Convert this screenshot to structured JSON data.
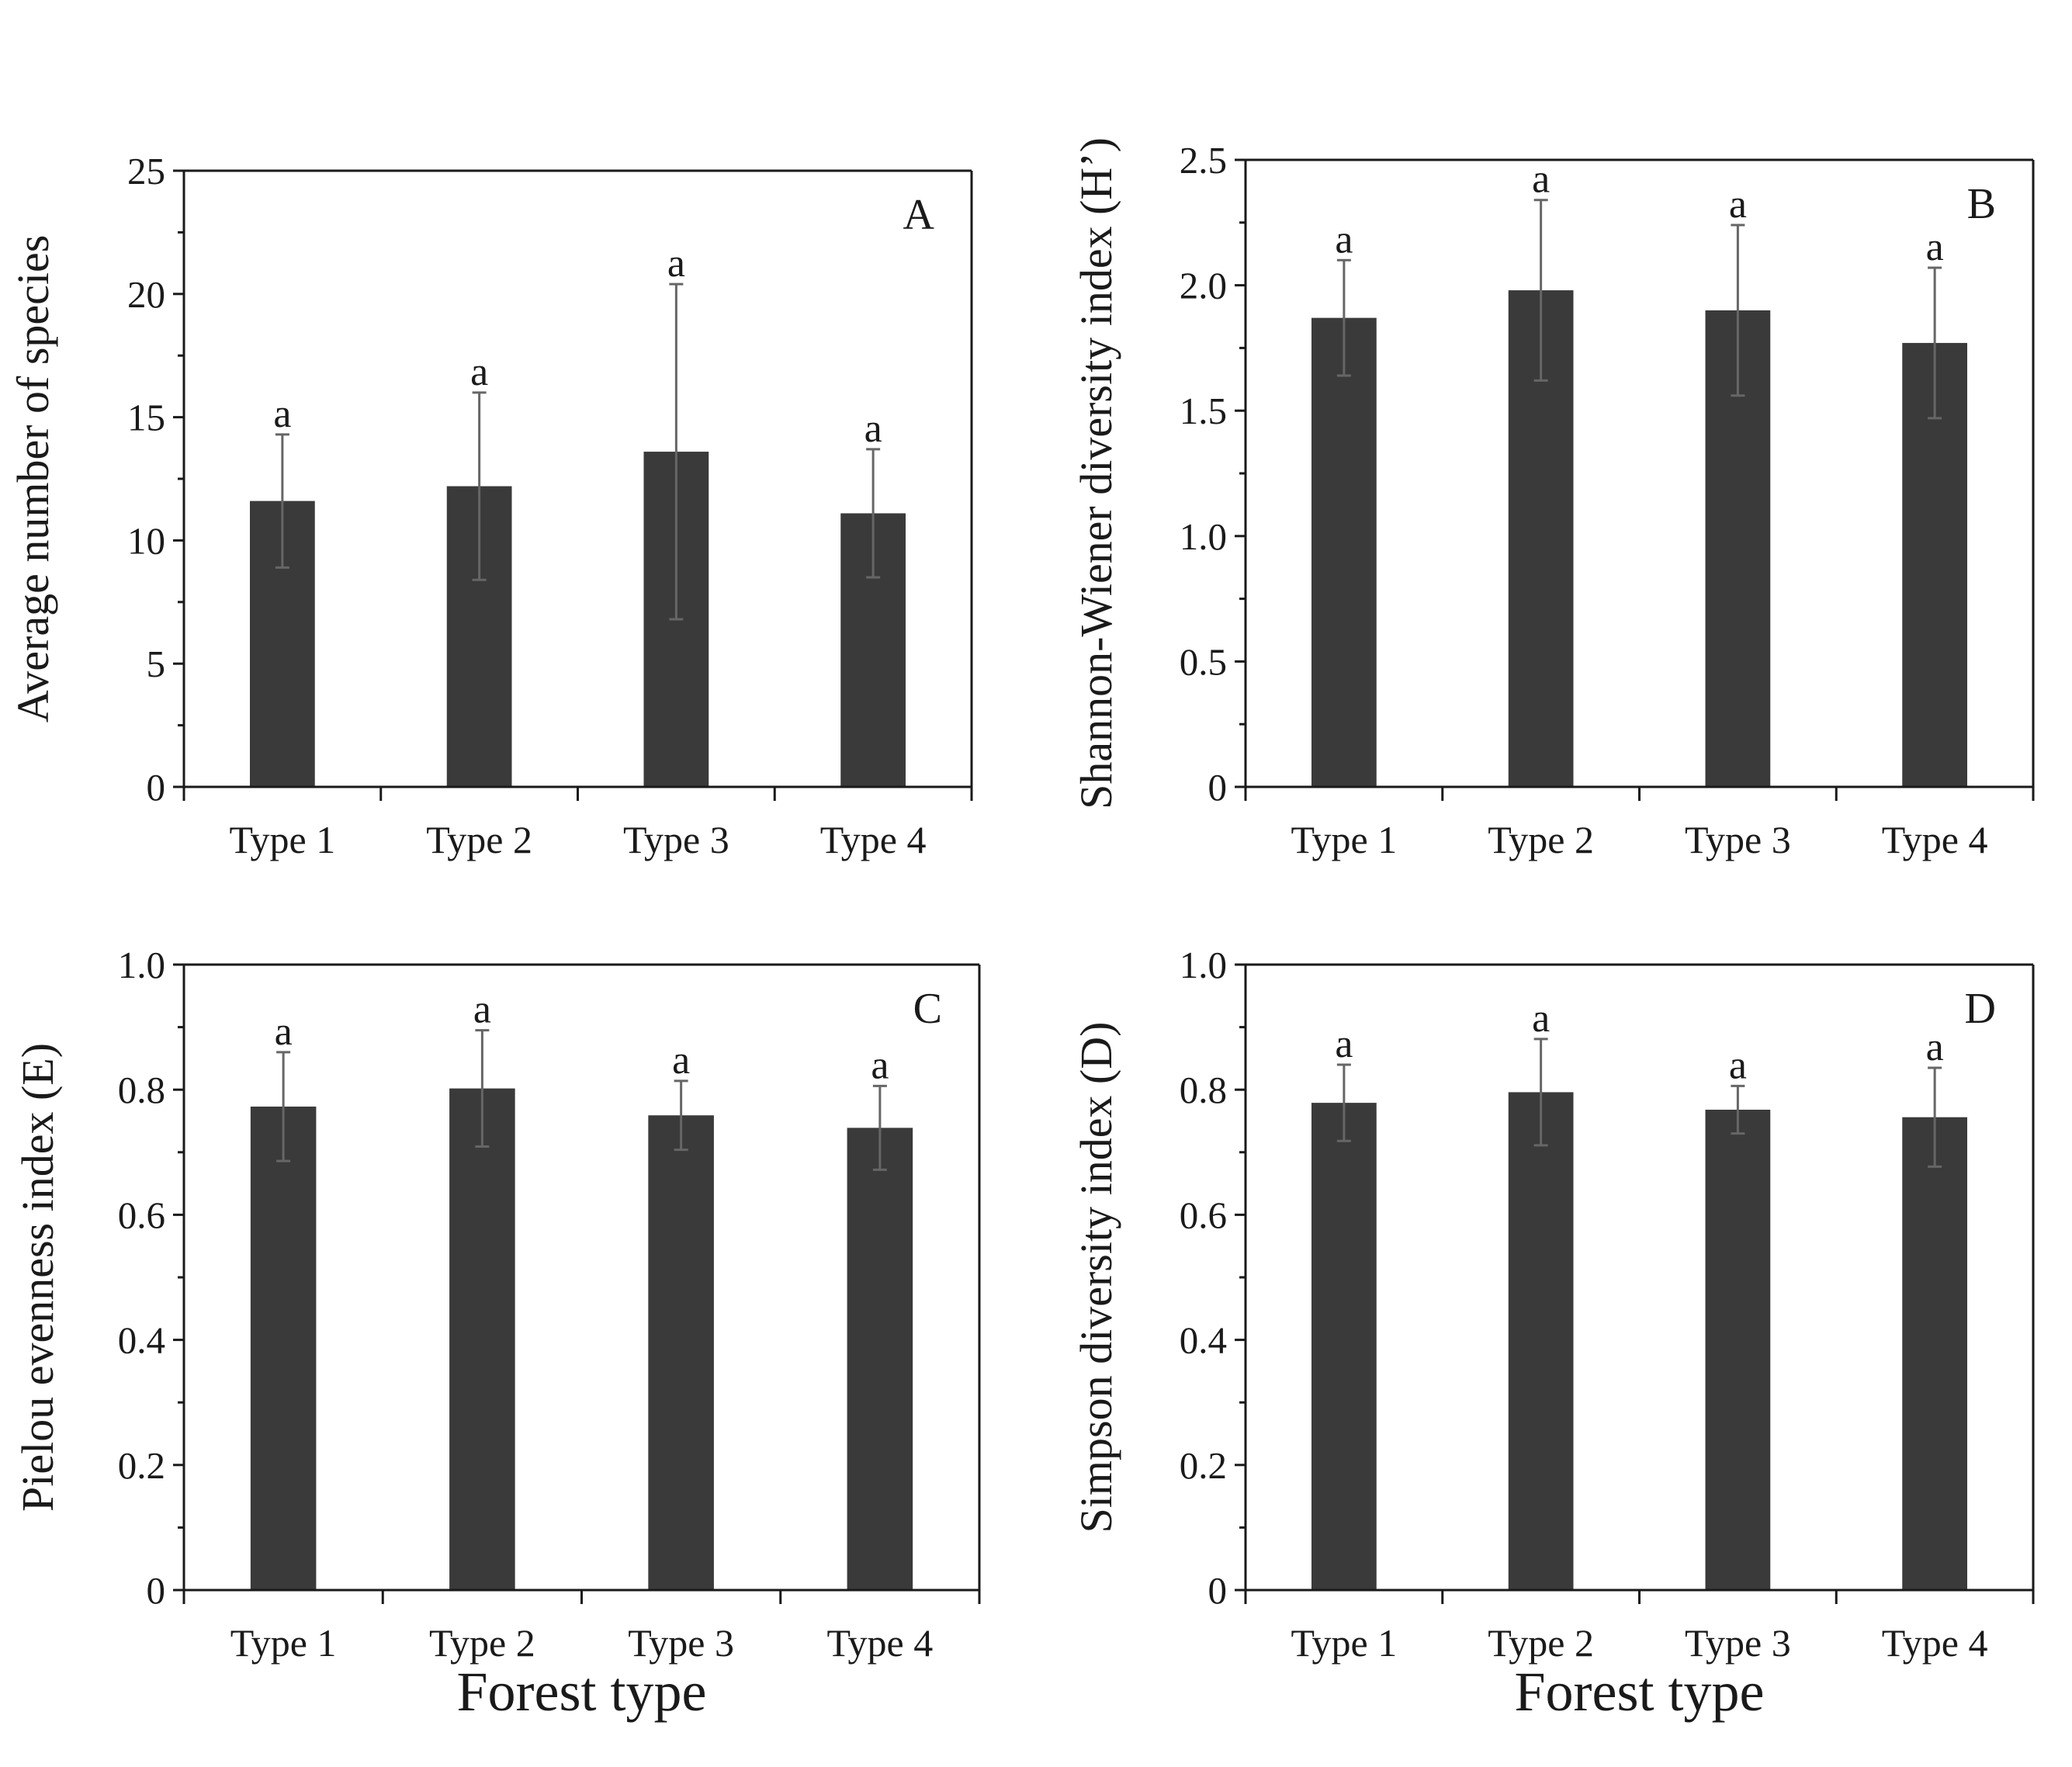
{
  "colors": {
    "bar": "#3a3a3a",
    "axis": "#1a1a1a",
    "errorbar": "#666666"
  },
  "chart_data": [
    {
      "id": "A",
      "type": "bar",
      "panel_label": "A",
      "categories": [
        "Type 1",
        "Type 2",
        "Type 3",
        "Type 4"
      ],
      "values": [
        11.6,
        12.2,
        13.6,
        11.1
      ],
      "errors": [
        2.7,
        3.8,
        6.8,
        2.6
      ],
      "significance": [
        "a",
        "a",
        "a",
        "a"
      ],
      "ylabel": "Average number of species",
      "xlabel": "",
      "ylim": [
        0,
        25
      ],
      "yticks": [
        0,
        5,
        10,
        15,
        20,
        25
      ],
      "ytick_labels": [
        "0",
        "5",
        "10",
        "15",
        "20",
        "25"
      ]
    },
    {
      "id": "B",
      "type": "bar",
      "panel_label": "B",
      "categories": [
        "Type 1",
        "Type 2",
        "Type 3",
        "Type 4"
      ],
      "values": [
        1.87,
        1.98,
        1.9,
        1.77
      ],
      "errors": [
        0.23,
        0.36,
        0.34,
        0.3
      ],
      "significance": [
        "a",
        "a",
        "a",
        "a"
      ],
      "ylabel": "Shannon-Wiener diversity  index (H’)",
      "xlabel": "",
      "ylim": [
        0,
        2.5
      ],
      "yticks": [
        0,
        0.5,
        1.0,
        1.5,
        2.0,
        2.5
      ],
      "ytick_labels": [
        "0",
        "0.5",
        "1.0",
        "1.5",
        "2.0",
        "2.5"
      ]
    },
    {
      "id": "C",
      "type": "bar",
      "panel_label": "C",
      "categories": [
        "Type 1",
        "Type 2",
        "Type 3",
        "Type 4"
      ],
      "values": [
        0.773,
        0.802,
        0.759,
        0.739
      ],
      "errors": [
        0.087,
        0.093,
        0.055,
        0.067
      ],
      "significance": [
        "a",
        "a",
        "a",
        "a"
      ],
      "ylabel": "Pielou  evenness  index (E)",
      "xlabel": "Forest type",
      "ylim": [
        0,
        1.0
      ],
      "yticks": [
        0,
        0.2,
        0.4,
        0.6,
        0.8,
        1.0
      ],
      "ytick_labels": [
        "0",
        "0.2",
        "0.4",
        "0.6",
        "0.8",
        "1.0"
      ]
    },
    {
      "id": "D",
      "type": "bar",
      "panel_label": "D",
      "categories": [
        "Type 1",
        "Type 2",
        "Type 3",
        "Type 4"
      ],
      "values": [
        0.779,
        0.796,
        0.768,
        0.756
      ],
      "errors": [
        0.061,
        0.085,
        0.038,
        0.079
      ],
      "significance": [
        "a",
        "a",
        "a",
        "a"
      ],
      "ylabel": "Simpson diversity  index (D)",
      "xlabel": "Forest type",
      "ylim": [
        0,
        1.0
      ],
      "yticks": [
        0,
        0.2,
        0.4,
        0.6,
        0.8,
        1.0
      ],
      "ytick_labels": [
        "0",
        "0.2",
        "0.4",
        "0.6",
        "0.8",
        "1.0"
      ]
    }
  ]
}
